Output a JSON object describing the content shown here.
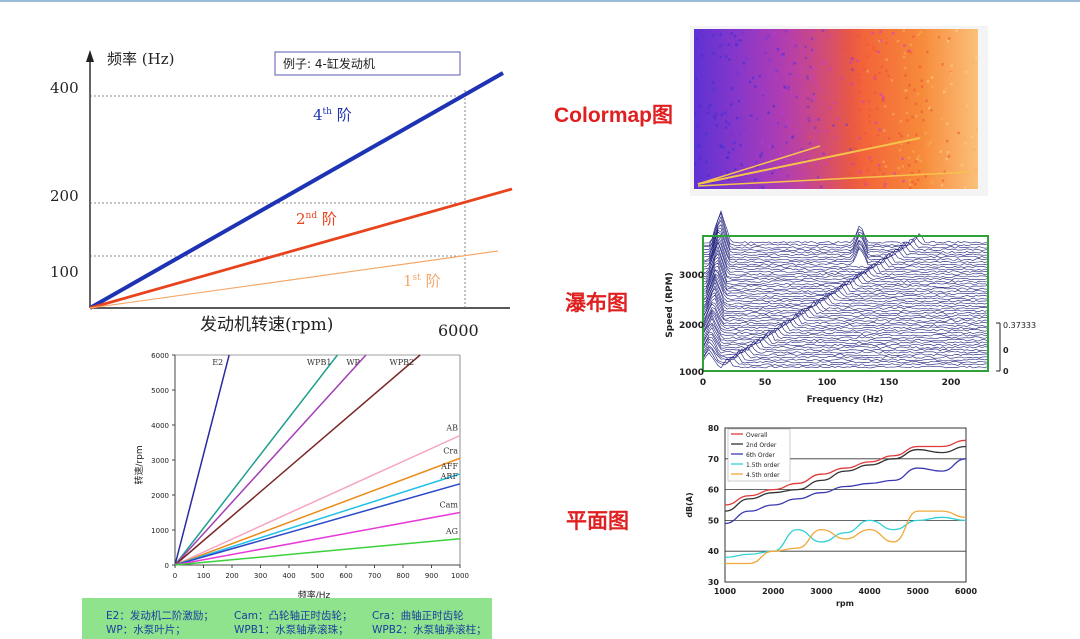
{
  "charts": {
    "order": {
      "ylabel": "频率 (Hz)",
      "xlabel": "发动机转速(rpm)",
      "yticks": [
        "400",
        "200",
        "100"
      ],
      "xtick": "6000",
      "example": "例子: 4-缸发动机",
      "orders": [
        {
          "num": "4",
          "sup": "th",
          "suffix": " 阶",
          "color": "#1e33b4"
        },
        {
          "num": "2",
          "sup": "nd",
          "suffix": " 阶",
          "color": "#e8431c"
        },
        {
          "num": "1",
          "sup": "st",
          "suffix": " 阶",
          "color": "#f3a86a"
        }
      ]
    },
    "colormap": {
      "label": "Colormap图"
    },
    "waterfall": {
      "label": "瀑布图",
      "xlabel": "Frequency (Hz)",
      "ylabel": "Speed (RPM)",
      "xticks": [
        "0",
        "50",
        "100",
        "150",
        "200"
      ],
      "yticks": [
        "3000",
        "2000",
        "1000"
      ],
      "scale": [
        "0.37333",
        "0",
        "0"
      ]
    },
    "planar": {
      "label": "平面图"
    }
  },
  "chart_data": [
    {
      "type": "line",
      "xlabel": "发动机转速(rpm)",
      "ylabel": "频率 (Hz)",
      "x": [
        0,
        6000
      ],
      "series": [
        {
          "name": "4th 阶",
          "values": [
            0,
            400
          ]
        },
        {
          "name": "2nd 阶",
          "values": [
            0,
            200
          ]
        },
        {
          "name": "1st 阶",
          "values": [
            0,
            100
          ]
        }
      ]
    },
    {
      "type": "line",
      "xlabel": "频率/Hz",
      "ylabel": "转速/rpm",
      "xlim": [
        0,
        1000
      ],
      "ylim": [
        0,
        6000
      ],
      "xticks": [
        "0",
        "100",
        "200",
        "300",
        "400",
        "500",
        "600",
        "700",
        "800",
        "900",
        "1000"
      ],
      "yticks": [
        "0",
        "1000",
        "2000",
        "3000",
        "4000",
        "5000",
        "6000"
      ],
      "series": [
        {
          "name": "E2",
          "color": "#2a2aa0",
          "points": [
            [
              0,
              0
            ],
            [
              190,
              6000
            ]
          ]
        },
        {
          "name": "WPB1",
          "color": "#1e9e8e",
          "points": [
            [
              0,
              0
            ],
            [
              570,
              6000
            ]
          ]
        },
        {
          "name": "WP",
          "color": "#a23fb5",
          "points": [
            [
              0,
              0
            ],
            [
              670,
              6000
            ]
          ]
        },
        {
          "name": "WPB2",
          "color": "#7a2525",
          "points": [
            [
              0,
              0
            ],
            [
              860,
              6000
            ]
          ]
        },
        {
          "name": "AB",
          "color": "#f7a3c4",
          "points": [
            [
              0,
              0
            ],
            [
              1000,
              3700
            ]
          ]
        },
        {
          "name": "Cra",
          "color": "#ea8c1b",
          "points": [
            [
              0,
              0
            ],
            [
              1000,
              3050
            ]
          ]
        },
        {
          "name": "AFF",
          "color": "#23c0e8",
          "points": [
            [
              0,
              0
            ],
            [
              1000,
              2600
            ]
          ]
        },
        {
          "name": "ARF",
          "color": "#2b47c9",
          "points": [
            [
              0,
              0
            ],
            [
              1000,
              2320
            ]
          ]
        },
        {
          "name": "Cam",
          "color": "#e63ad7",
          "points": [
            [
              0,
              0
            ],
            [
              1000,
              1500
            ]
          ]
        },
        {
          "name": "AG",
          "color": "#3bd13b",
          "points": [
            [
              0,
              0
            ],
            [
              1000,
              750
            ]
          ]
        }
      ]
    },
    {
      "type": "line",
      "xlabel": "rpm",
      "ylabel": "dB(A)",
      "xlim": [
        1000,
        6000
      ],
      "ylim": [
        30,
        80
      ],
      "xticks": [
        "1000",
        "2000",
        "3000",
        "4000",
        "5000",
        "6000"
      ],
      "yticks": [
        "30",
        "40",
        "50",
        "60",
        "70",
        "80"
      ],
      "grid": true,
      "legend": "top-left",
      "x": [
        1000,
        1500,
        2000,
        2500,
        3000,
        3500,
        4000,
        4500,
        5000,
        5500,
        6000
      ],
      "series": [
        {
          "name": "Overall",
          "color": "#e03a3a",
          "values": [
            55,
            58,
            60,
            62,
            65,
            67,
            69,
            71,
            74,
            74,
            76
          ]
        },
        {
          "name": "2nd Order",
          "color": "#333333",
          "values": [
            53,
            57,
            59,
            60,
            63,
            66,
            68,
            70,
            73,
            72,
            74
          ]
        },
        {
          "name": "6th Order",
          "color": "#3a3ab0",
          "values": [
            49,
            53,
            55,
            57,
            59,
            61,
            62,
            63,
            67,
            66,
            70
          ]
        },
        {
          "name": "1.5th order",
          "color": "#2fd0d8",
          "values": [
            38,
            39,
            40,
            47,
            43,
            46,
            50,
            47,
            50,
            51,
            50
          ]
        },
        {
          "name": "4.5th order",
          "color": "#f0a83a",
          "values": [
            36,
            36,
            40,
            41,
            47,
            44,
            47,
            43,
            53,
            53,
            51
          ]
        }
      ]
    }
  ],
  "caption": {
    "row1": [
      "E2：发动机二阶激励；",
      "Cam：凸轮轴正时齿轮；",
      "Cra：曲轴正时齿轮"
    ],
    "row2": [
      "WP：水泵叶片；",
      "WPB1：水泵轴承滚珠；",
      "WPB2：水泵轴承滚柱；"
    ]
  }
}
